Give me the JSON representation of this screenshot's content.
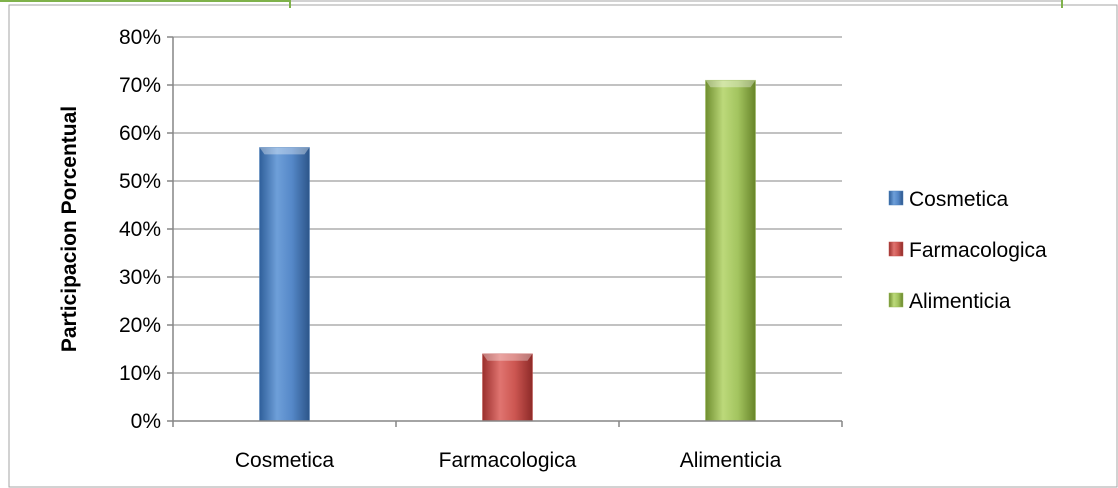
{
  "chart_data": {
    "type": "bar",
    "title": "",
    "xlabel": "",
    "ylabel": "Participacion Porcentual",
    "categories": [
      "Cosmetica",
      "Farmacologica",
      "Alimenticia"
    ],
    "values": [
      0.57,
      0.14,
      0.71
    ],
    "colors": [
      "#4f81bd",
      "#c0504d",
      "#9bbb59"
    ],
    "ylim": [
      0,
      0.8
    ],
    "yticks": [
      0,
      0.1,
      0.2,
      0.3,
      0.4,
      0.5,
      0.6,
      0.7,
      0.8
    ],
    "ytick_labels": [
      "0%",
      "10%",
      "20%",
      "30%",
      "40%",
      "50%",
      "60%",
      "70%",
      "80%"
    ],
    "grid": true,
    "legend": {
      "position": "right",
      "entries": [
        "Cosmetica",
        "Farmacologica",
        "Alimenticia"
      ]
    }
  }
}
